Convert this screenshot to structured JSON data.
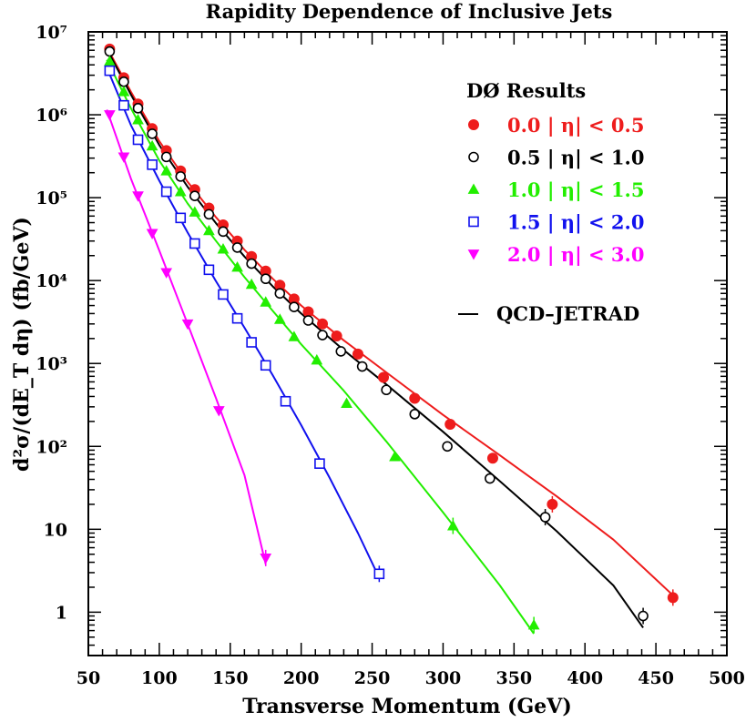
{
  "chart_data": {
    "type": "scatter",
    "title": "Rapidity Dependence of Inclusive Jets",
    "xlabel": "Transverse Momentum (GeV)",
    "ylabel": "d²σ/(dE_T dη) (fb/GeV)",
    "xlim": [
      50,
      500
    ],
    "ylim": [
      0.3,
      10000000
    ],
    "yscale": "log",
    "x_ticks": [
      50,
      100,
      150,
      200,
      250,
      300,
      350,
      400,
      450,
      500
    ],
    "x_tick_labels": [
      "50",
      "100",
      "150",
      "200",
      "250",
      "300",
      "350",
      "400",
      "450",
      "500"
    ],
    "y_ticks": [
      1,
      10,
      100,
      1000,
      10000,
      100000,
      1000000,
      10000000
    ],
    "y_tick_labels": [
      "1",
      "10",
      "10²",
      "10³",
      "10⁴",
      "10⁵",
      "10⁶",
      "10⁷"
    ],
    "legend_title": "DØ Results",
    "theory_label": "QCD–JETRAD",
    "series": [
      {
        "name": "0.0 | η| < 0.5",
        "color": "#ee1c1c",
        "marker": "filled-circle",
        "x": [
          65,
          75,
          85,
          95,
          105,
          115,
          125,
          135,
          145,
          155,
          165,
          175,
          185,
          195,
          205,
          215,
          225,
          240,
          258,
          280,
          305,
          335,
          377,
          462
        ],
        "y": [
          6200000,
          2800000,
          1350000,
          680000,
          370000,
          210000,
          125000,
          75000,
          47000,
          30000,
          19500,
          13000,
          8800,
          6000,
          4200,
          3000,
          2150,
          1300,
          680,
          380,
          185,
          72,
          20,
          1.5
        ],
        "fit": [
          [
            63,
            6500000
          ],
          [
            80,
            1900000
          ],
          [
            100,
            480000
          ],
          [
            120,
            155000
          ],
          [
            140,
            58000
          ],
          [
            160,
            23500
          ],
          [
            180,
            10500
          ],
          [
            200,
            5000
          ],
          [
            230,
            1900
          ],
          [
            260,
            780
          ],
          [
            300,
            240
          ],
          [
            340,
            78
          ],
          [
            380,
            25
          ],
          [
            420,
            7.5
          ],
          [
            462,
            1.6
          ]
        ]
      },
      {
        "name": "0.5 | η| < 1.0",
        "color": "#000000",
        "marker": "open-circle",
        "x": [
          65,
          75,
          85,
          95,
          105,
          115,
          125,
          135,
          145,
          155,
          165,
          175,
          185,
          195,
          205,
          215,
          228,
          243,
          260,
          280,
          303,
          333,
          372,
          441
        ],
        "y": [
          5800000,
          2500000,
          1200000,
          590000,
          310000,
          180000,
          105000,
          63000,
          39000,
          25000,
          16000,
          10500,
          7000,
          4800,
          3300,
          2200,
          1400,
          920,
          480,
          245,
          100,
          41,
          14,
          0.9
        ],
        "fit": [
          [
            63,
            6200000
          ],
          [
            80,
            1750000
          ],
          [
            100,
            430000
          ],
          [
            120,
            135000
          ],
          [
            140,
            49000
          ],
          [
            160,
            19500
          ],
          [
            180,
            8500
          ],
          [
            200,
            4000
          ],
          [
            230,
            1450
          ],
          [
            260,
            560
          ],
          [
            300,
            150
          ],
          [
            340,
            38
          ],
          [
            380,
            9.5
          ],
          [
            420,
            2.1
          ],
          [
            441,
            0.65
          ]
        ]
      },
      {
        "name": "1.0 | η| < 1.5",
        "color": "#22ee00",
        "marker": "filled-triangle-up",
        "x": [
          65,
          75,
          85,
          95,
          105,
          115,
          125,
          135,
          145,
          155,
          165,
          175,
          185,
          195,
          211,
          232,
          266,
          307,
          364
        ],
        "y": [
          4400000,
          1900000,
          870000,
          420000,
          210000,
          118000,
          67000,
          40000,
          24000,
          14500,
          9000,
          5500,
          3400,
          2100,
          1100,
          330,
          75,
          11,
          0.7
        ],
        "fit": [
          [
            63,
            4600000
          ],
          [
            80,
            1200000
          ],
          [
            100,
            280000
          ],
          [
            120,
            85000
          ],
          [
            140,
            30000
          ],
          [
            160,
            11000
          ],
          [
            180,
            4300
          ],
          [
            200,
            1700
          ],
          [
            230,
            470
          ],
          [
            260,
            115
          ],
          [
            300,
            16
          ],
          [
            340,
            2.1
          ],
          [
            364,
            0.55
          ]
        ]
      },
      {
        "name": "1.5 | η| < 2.0",
        "color": "#1111ee",
        "marker": "open-square",
        "x": [
          65,
          75,
          85,
          95,
          105,
          115,
          125,
          135,
          145,
          155,
          165,
          175,
          189,
          213,
          255
        ],
        "y": [
          3400000,
          1300000,
          500000,
          250000,
          118000,
          57000,
          28000,
          13500,
          6800,
          3500,
          1800,
          950,
          350,
          62,
          2.9
        ],
        "fit": [
          [
            63,
            3700000
          ],
          [
            80,
            750000
          ],
          [
            100,
            160000
          ],
          [
            120,
            38000
          ],
          [
            140,
            9800
          ],
          [
            160,
            2700
          ],
          [
            180,
            720
          ],
          [
            200,
            180
          ],
          [
            220,
            42
          ],
          [
            240,
            9
          ],
          [
            255,
            2.6
          ]
        ]
      },
      {
        "name": "2.0 | η| < 3.0",
        "color": "#ff00ff",
        "marker": "filled-triangle-down",
        "x": [
          65,
          75,
          85,
          95,
          105,
          120,
          142,
          175
        ],
        "y": [
          1000000,
          310000,
          105000,
          37000,
          12500,
          3000,
          270,
          4.5
        ],
        "fit": [
          [
            63,
            1150000
          ],
          [
            80,
            170000
          ],
          [
            100,
            23000
          ],
          [
            120,
            3000
          ],
          [
            140,
            380
          ],
          [
            160,
            45
          ],
          [
            175,
            3.8
          ]
        ]
      }
    ]
  }
}
